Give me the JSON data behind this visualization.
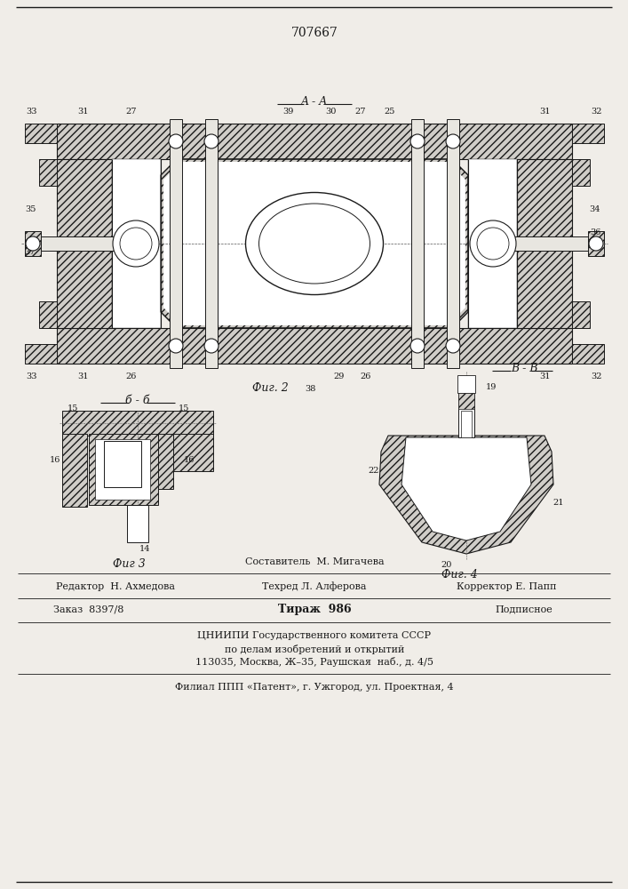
{
  "patent_number": "707667",
  "bg": "#f0ede8",
  "lc": "#1a1a1a",
  "hc": "#d0cdc8",
  "fig2_label": "Фиг. 2",
  "fig3_label": "Фиг 3",
  "fig4_label": "Фиг. 4",
  "aa": "A - A",
  "bb_upper": "B - B",
  "bb_lower": "б - б",
  "f1": "Составитель  М. Мигачева",
  "f2": "Редактор  Н. Ахмедова",
  "f3": "Техред Л. Алферова",
  "f4": "Корректор Е. Папп",
  "f5": "Заказ  8397/8",
  "f6": "Тираж  986",
  "f7": "Подписное",
  "f8": "ЦНИИПИ Государственного комитета СССР",
  "f9": "по делам изобретений и открытий",
  "f10": "113035, Москва, Ж–35, Раушская  наб., д. 4/5",
  "f11": "Филиал ППП «Патент», г. Ужгород, ул. Проектная, 4"
}
